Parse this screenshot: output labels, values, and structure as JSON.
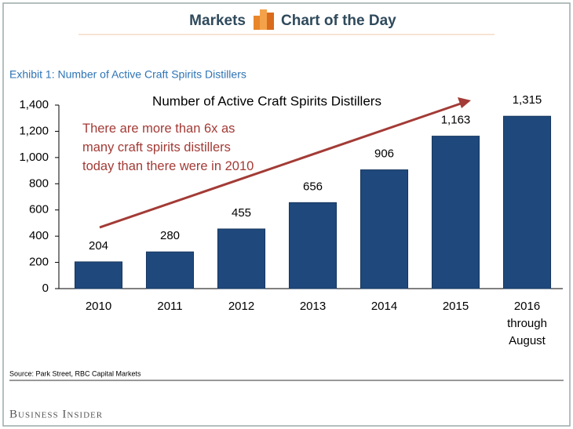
{
  "header": {
    "left": "Markets",
    "right": "Chart of the Day"
  },
  "exhibit": "Exhibit 1: Number of Active Craft Spirits Distillers",
  "source": "Source: Park Street, RBC Capital Markets",
  "brand": "Business Insider",
  "chart_data": {
    "type": "bar",
    "title": "Number of Active Craft Spirits Distillers",
    "annotation": "There are more than 6x as many craft spirits distillers today than there were in 2010",
    "categories": [
      "2010",
      "2011",
      "2012",
      "2013",
      "2014",
      "2015",
      "2016 through August"
    ],
    "values": [
      204,
      280,
      455,
      656,
      906,
      1163,
      1315
    ],
    "value_labels": [
      "204",
      "280",
      "455",
      "656",
      "906",
      "1,163",
      "1,315"
    ],
    "color": "#1f497d",
    "ylim": [
      0,
      1400
    ],
    "yticks": [
      0,
      200,
      400,
      600,
      800,
      {
        "value": 1000,
        "label": "1,000"
      },
      {
        "value": 1200,
        "label": "1,200"
      },
      {
        "value": 1400,
        "label": "1,400"
      }
    ],
    "grid": false
  }
}
